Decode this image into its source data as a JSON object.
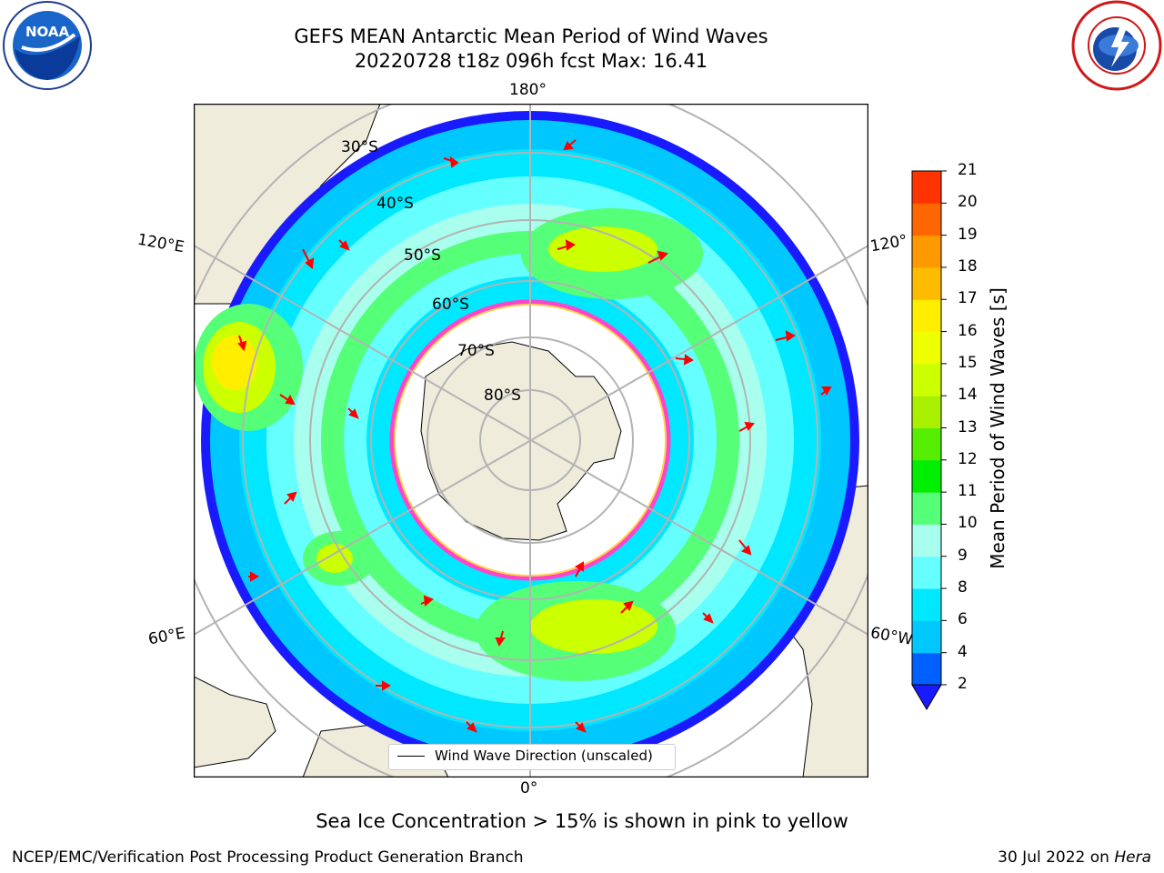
{
  "header": {
    "title_line1": "GEFS MEAN Antarctic Mean Period of Wind Waves",
    "title_line2": "20220728 t18z 096h fcst   Max: 16.41"
  },
  "logos": {
    "left": "noaa-logo",
    "right": "national-weather-service-logo"
  },
  "map": {
    "projection": "south-polar-stereographic",
    "lon_labels": {
      "top": "180°",
      "bottom": "0°",
      "left_upper": "120°E",
      "left_lower": "60°E",
      "right_upper": "120°",
      "right_lower": "60°W"
    },
    "lat_labels": [
      "30°S",
      "40°S",
      "50°S",
      "60°S",
      "70°S",
      "80°S"
    ],
    "colors": {
      "land": "#efecdc",
      "ice_edge": "#ff44cc",
      "ice_edge_inner": "#ffd24a",
      "arrow": "#ff0000",
      "grid": "#b3b3b3"
    }
  },
  "legend": {
    "label": "Wind Wave Direction (unscaled)"
  },
  "colorbar": {
    "label": "Mean Period of Wind Waves [s]",
    "ticks": [
      "2",
      "4",
      "6",
      "8",
      "9",
      "10",
      "11",
      "12",
      "13",
      "14",
      "15",
      "16",
      "17",
      "18",
      "19",
      "20",
      "21"
    ],
    "colors": [
      "#0060ff",
      "#00c8ff",
      "#00e8ff",
      "#66ffff",
      "#a8ffee",
      "#55ff77",
      "#00ee00",
      "#55ee00",
      "#aaee00",
      "#ccff00",
      "#eeff00",
      "#ffee00",
      "#ffbb00",
      "#ff9900",
      "#ff6600",
      "#ff3300",
      "#ff0000"
    ],
    "under_color": "#1a1aff"
  },
  "caption": "Sea Ice Concentration > 15% is shown in pink to yellow",
  "footer": {
    "left": "NCEP/EMC/Verification Post Processing Product Generation Branch",
    "right_date": "30 Jul 2022 on",
    "right_host": "Hera"
  }
}
